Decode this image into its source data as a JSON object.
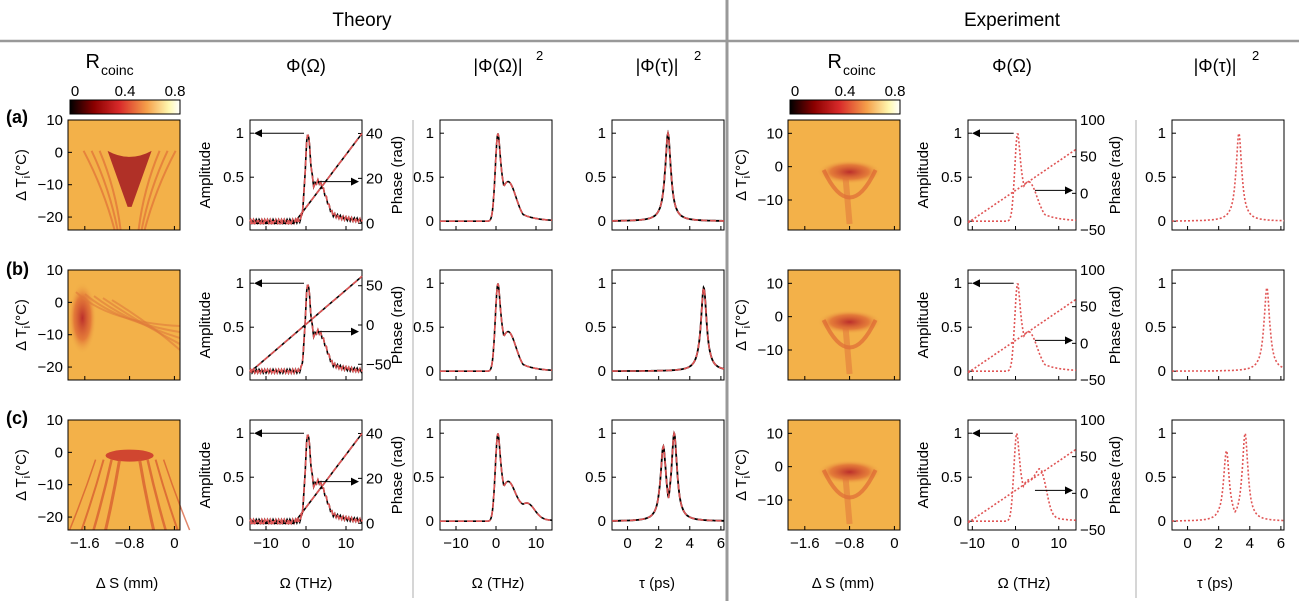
{
  "header": {
    "theory": "Theory",
    "experiment": "Experiment"
  },
  "column_titles": {
    "theory": [
      "R",
      "Φ(Ω)",
      "|Φ(Ω)|",
      "|Φ(τ)|"
    ],
    "experiment": [
      "R",
      "Φ(Ω)",
      "|Φ(τ)|"
    ],
    "rcoinc_subscript": "coinc",
    "squared_superscript": "2"
  },
  "colorbar": {
    "ticks": [
      "0",
      "0.4",
      "0.8"
    ],
    "colors": [
      "#000000",
      "#8b0000",
      "#d82a2a",
      "#f5a04a",
      "#fff8b0",
      "#ffffff"
    ]
  },
  "row_labels": [
    "(a)",
    "(b)",
    "(c)"
  ],
  "axis_labels": {
    "delta_t": "Δ T",
    "delta_t_sub": "i",
    "delta_t_unit": "(°C)",
    "amplitude": "Amplitude",
    "phase": "Phase (rad)",
    "delta_s": "Δ S (mm)",
    "omega": "Ω (THz)",
    "tau": "τ (ps)"
  },
  "colors": {
    "theory_line": "#000000",
    "fit_line": "#e05555",
    "divider": "#999999"
  },
  "chart_data": [
    {
      "type": "heatmap",
      "title": "R_coinc (Theory)",
      "xlabel": "Δ S (mm)",
      "ylabel": "Δ T_i (°C)",
      "xlim": [
        -1.9,
        0.1
      ],
      "ylim": [
        -24,
        10
      ],
      "xticks": [
        "-1.6",
        "-0.8",
        "0"
      ],
      "yticks": [
        "10",
        "0",
        "-10",
        "-20"
      ],
      "color_range": [
        0,
        0.8
      ],
      "rows": [
        {
          "row": "(a)",
          "feature": "inverted-cone",
          "centre_dS": -0.8,
          "centre_dT": -2
        },
        {
          "row": "(b)",
          "feature": "left-edge",
          "centre_dS": -1.75,
          "centre_dT": -3
        },
        {
          "row": "(c)",
          "feature": "double-branch",
          "centre_dS": -0.8,
          "centre_dT": -1
        }
      ]
    },
    {
      "type": "line",
      "title": "Φ(Ω) (Theory)",
      "xlabel": "Ω (THz)",
      "ylabel": "Amplitude",
      "y2label": "Phase (rad)",
      "xlim": [
        -14,
        14
      ],
      "ylim": [
        -0.1,
        1.15
      ],
      "xticks": [
        "-10",
        "0",
        "10"
      ],
      "yticks": [
        "1",
        "0.5",
        "0"
      ],
      "rows": [
        {
          "row": "(a)",
          "y2lim": [
            -3,
            46
          ],
          "y2ticks": [
            "40",
            "20",
            "0"
          ],
          "amplitude_peak_x": 0.5,
          "phase_linear": [
            [
              -3,
              0
            ],
            [
              14,
              40
            ]
          ]
        },
        {
          "row": "(b)",
          "y2lim": [
            -70,
            70
          ],
          "y2ticks": [
            "50",
            "0",
            "-50"
          ],
          "amplitude_peak_x": 0.5,
          "phase_linear": [
            [
              -14,
              -60
            ],
            [
              14,
              62
            ]
          ]
        },
        {
          "row": "(c)",
          "y2lim": [
            -3,
            46
          ],
          "y2ticks": [
            "40",
            "20",
            "0"
          ],
          "amplitude_peak_x": 0.5,
          "phase_linear": [
            [
              -3,
              0
            ],
            [
              14,
              40
            ]
          ]
        }
      ]
    },
    {
      "type": "line",
      "title": "|Φ(Ω)|² (Theory)",
      "xlabel": "Ω (THz)",
      "xlim": [
        -14,
        14
      ],
      "ylim": [
        -0.1,
        1.15
      ],
      "xticks": [
        "-10",
        "0",
        "10"
      ],
      "yticks": [
        "1",
        "0.5",
        "0"
      ],
      "rows": [
        {
          "row": "(a)",
          "peak_x": 0.5,
          "peak_y": 1.0
        },
        {
          "row": "(b)",
          "peak_x": 0.5,
          "peak_y": 1.0
        },
        {
          "row": "(c)",
          "peak_x": 0.5,
          "peak_y": 1.0,
          "secondary_bump": [
            8,
            0.15
          ]
        }
      ]
    },
    {
      "type": "line",
      "title": "|Φ(τ)|² (Theory)",
      "xlabel": "τ (ps)",
      "xlim": [
        -1,
        6.2
      ],
      "ylim": [
        -0.1,
        1.15
      ],
      "xticks": [
        "0",
        "2",
        "4",
        "6"
      ],
      "yticks": [
        "1",
        "0.5",
        "0"
      ],
      "rows": [
        {
          "row": "(a)",
          "peaks": [
            [
              2.6,
              1.0
            ]
          ]
        },
        {
          "row": "(b)",
          "peaks": [
            [
              4.9,
              0.95
            ]
          ]
        },
        {
          "row": "(c)",
          "peaks": [
            [
              2.3,
              0.85
            ],
            [
              3.0,
              1.0
            ]
          ]
        }
      ]
    },
    {
      "type": "heatmap",
      "title": "R_coinc (Experiment)",
      "xlabel": "Δ S (mm)",
      "ylabel": "Δ T_i (°C)",
      "xlim": [
        -1.9,
        0.1
      ],
      "ylim": [
        -19,
        14
      ],
      "xticks": [
        "-1.6",
        "-0.8",
        "0"
      ],
      "yticks": [
        "10",
        "0",
        "-10"
      ],
      "color_range": [
        0,
        0.8
      ]
    },
    {
      "type": "line",
      "title": "Φ(Ω) (Experiment)",
      "xlabel": "Ω (THz)",
      "ylabel": "Amplitude",
      "y2label": "Phase (rad)",
      "xlim": [
        -11,
        14
      ],
      "ylim": [
        -0.1,
        1.15
      ],
      "y2lim": [
        -50,
        100
      ],
      "xticks": [
        "-10",
        "0",
        "10"
      ],
      "yticks": [
        "1",
        "0.5",
        "0"
      ],
      "y2ticks": [
        "100",
        "50",
        "0",
        "-50"
      ],
      "rows": [
        {
          "row": "(a)",
          "amplitude_peak_x": 0.5
        },
        {
          "row": "(b)",
          "amplitude_peak_x": 0.5
        },
        {
          "row": "(c)",
          "amplitude_peaks": [
            [
              0.3,
              1.0
            ],
            [
              6,
              0.45
            ]
          ]
        }
      ]
    },
    {
      "type": "line",
      "title": "|Φ(τ)|² (Experiment)",
      "xlabel": "τ (ps)",
      "xlim": [
        -1,
        6.2
      ],
      "ylim": [
        -0.1,
        1.15
      ],
      "xticks": [
        "0",
        "2",
        "4",
        "6"
      ],
      "yticks": [
        "1",
        "0.5",
        "0"
      ],
      "rows": [
        {
          "row": "(a)",
          "peaks": [
            [
              3.3,
              1.0
            ]
          ]
        },
        {
          "row": "(b)",
          "peaks": [
            [
              5.1,
              0.95
            ]
          ]
        },
        {
          "row": "(c)",
          "peaks": [
            [
              2.5,
              0.8
            ],
            [
              3.7,
              1.0
            ]
          ]
        }
      ]
    }
  ]
}
